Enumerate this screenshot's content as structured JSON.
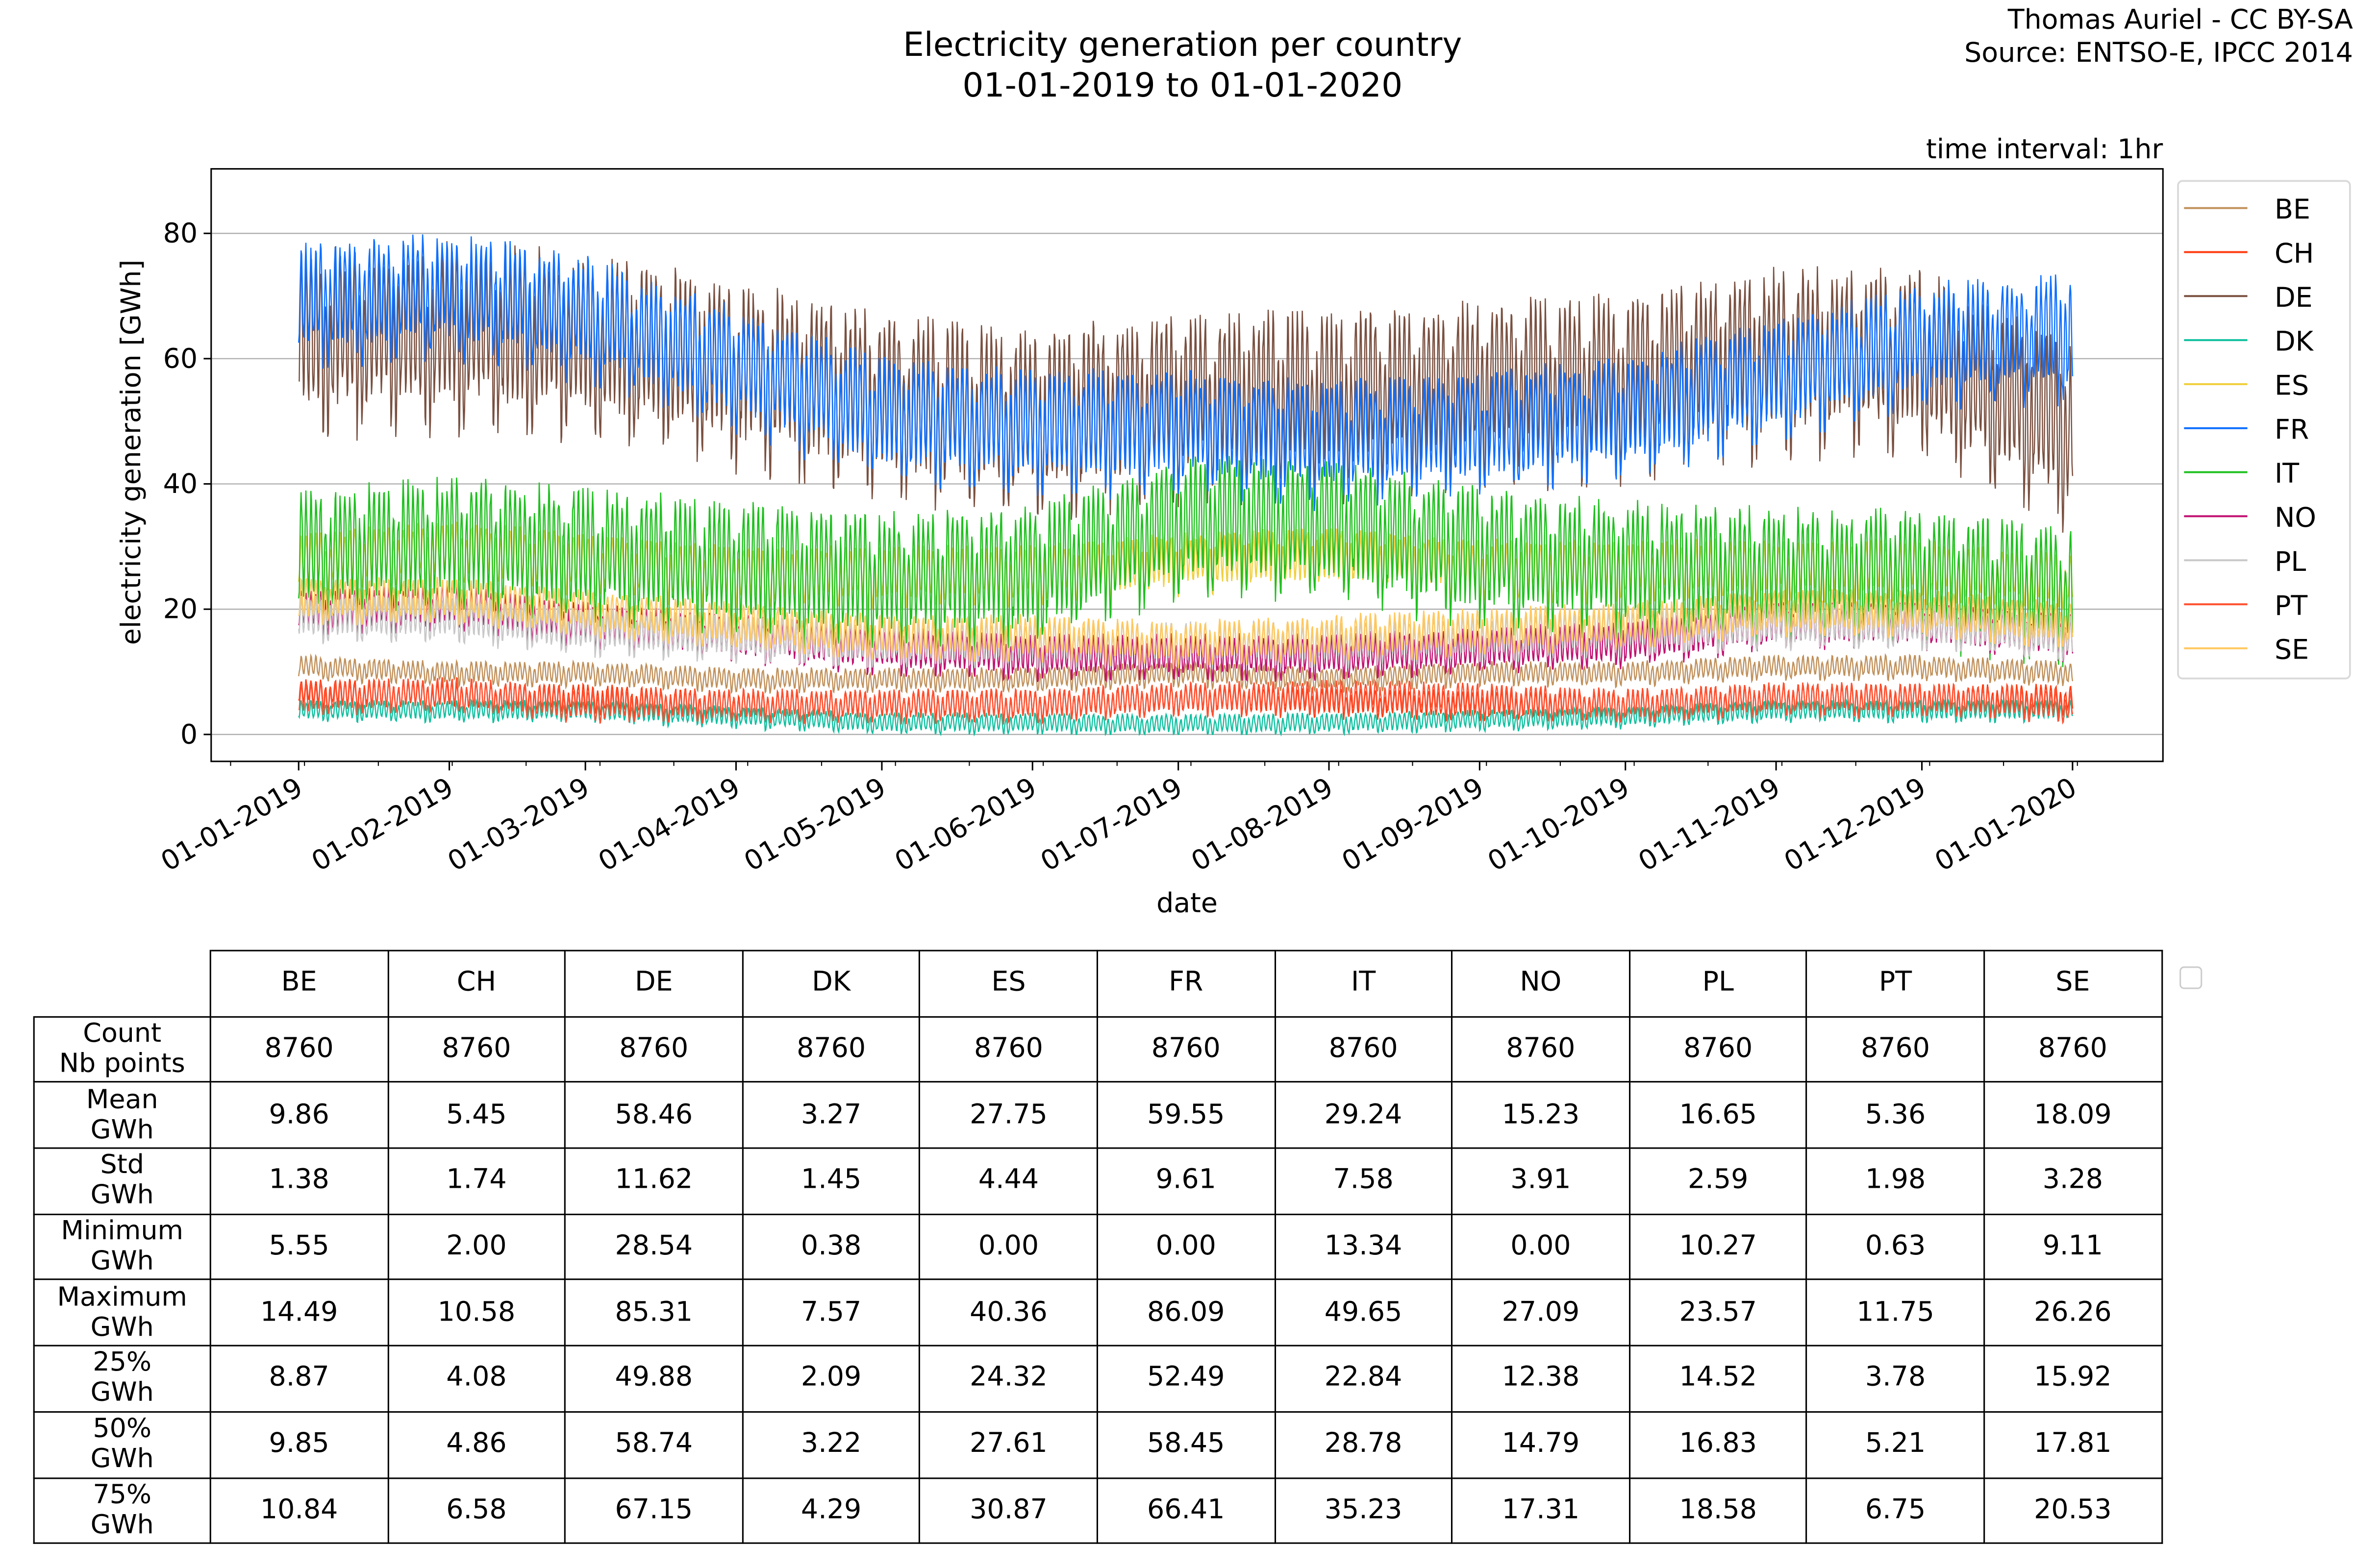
{
  "header": {
    "title_line1": "Electricity generation per country",
    "title_line2": "01-01-2019 to 01-01-2020",
    "credit_line1": "Thomas Auriel - CC BY-SA",
    "credit_line2": "Source: ENTSO-E, IPCC 2014",
    "interval": "time interval: 1hr"
  },
  "chart_data": {
    "type": "line",
    "title": "Electricity generation per country",
    "xlabel": "date",
    "ylabel": "electricity generation [GWh]",
    "x_ticks": [
      "01-01-2019",
      "01-02-2019",
      "01-03-2019",
      "01-04-2019",
      "01-05-2019",
      "01-06-2019",
      "01-07-2019",
      "01-08-2019",
      "01-09-2019",
      "01-10-2019",
      "01-11-2019",
      "01-12-2019",
      "01-01-2020"
    ],
    "x_tick_days": [
      0,
      31,
      59,
      90,
      120,
      151,
      181,
      212,
      243,
      273,
      304,
      334,
      365
    ],
    "xlim_days": [
      -18,
      383.6
    ],
    "y_ticks": [
      0,
      20,
      40,
      60,
      80
    ],
    "ylim": [
      -4.3,
      90.3
    ],
    "grid": "horizontal",
    "legend_position": "right-outside-top",
    "series": [
      {
        "name": "BE",
        "color": "#c0905a",
        "monthly_level": [
          11,
          10,
          10,
          9,
          9,
          9,
          10,
          9,
          10,
          10,
          11,
          11,
          10
        ],
        "swing": 1.6
      },
      {
        "name": "CH",
        "color": "#ff3a10",
        "monthly_level": [
          7,
          6.5,
          6,
          5,
          5,
          5,
          6,
          5.5,
          5,
          5,
          6,
          6,
          6
        ],
        "swing": 2
      },
      {
        "name": "DE",
        "color": "#7a5040",
        "monthly_level": [
          65,
          66,
          65,
          60,
          55,
          52,
          55,
          55,
          57,
          58,
          62,
          62,
          50
        ],
        "swing": 12
      },
      {
        "name": "DK",
        "color": "#10c0a0",
        "monthly_level": [
          4,
          4,
          4,
          3,
          2,
          2,
          1.8,
          2,
          2.5,
          3,
          4,
          4,
          4
        ],
        "swing": 1.4
      },
      {
        "name": "ES",
        "color": "#f0d040",
        "monthly_level": [
          28,
          30,
          28,
          26,
          26,
          26,
          28,
          29,
          27,
          27,
          27,
          27,
          25
        ],
        "swing": 4
      },
      {
        "name": "FR",
        "color": "#1070ff",
        "monthly_level": [
          70,
          72,
          68,
          60,
          52,
          50,
          50,
          48,
          50,
          52,
          58,
          64,
          65
        ],
        "swing": 8
      },
      {
        "name": "IT",
        "color": "#20c020",
        "monthly_level": [
          30,
          32,
          30,
          28,
          26,
          27,
          35,
          35,
          30,
          28,
          27,
          27,
          24
        ],
        "swing": 9
      },
      {
        "name": "NO",
        "color": "#c01070",
        "monthly_level": [
          20,
          21,
          18,
          16,
          14,
          13,
          13,
          13,
          14,
          15,
          18,
          18,
          16
        ],
        "swing": 3
      },
      {
        "name": "PL",
        "color": "#c8c8c8",
        "monthly_level": [
          19,
          19,
          17,
          16,
          15,
          15,
          15,
          15,
          16,
          17,
          18,
          18,
          16
        ],
        "swing": 3
      },
      {
        "name": "PT",
        "color": "#ff5030",
        "monthly_level": [
          6,
          7,
          5,
          5,
          5,
          5,
          6,
          6.5,
          6,
          5,
          6,
          6,
          5
        ],
        "swing": 2.2
      },
      {
        "name": "SE",
        "color": "#ffc860",
        "monthly_level": [
          22,
          22,
          20,
          18,
          16,
          16,
          15,
          16,
          17,
          18,
          20,
          20,
          18
        ],
        "swing": 3
      }
    ]
  },
  "table": {
    "columns": [
      "BE",
      "CH",
      "DE",
      "DK",
      "ES",
      "FR",
      "IT",
      "NO",
      "PL",
      "PT",
      "SE"
    ],
    "rows": [
      {
        "label1": "Count",
        "label2": "Nb points",
        "values": [
          "8760",
          "8760",
          "8760",
          "8760",
          "8760",
          "8760",
          "8760",
          "8760",
          "8760",
          "8760",
          "8760"
        ]
      },
      {
        "label1": "Mean",
        "label2": "GWh",
        "values": [
          "9.86",
          "5.45",
          "58.46",
          "3.27",
          "27.75",
          "59.55",
          "29.24",
          "15.23",
          "16.65",
          "5.36",
          "18.09"
        ]
      },
      {
        "label1": "Std",
        "label2": "GWh",
        "values": [
          "1.38",
          "1.74",
          "11.62",
          "1.45",
          "4.44",
          "9.61",
          "7.58",
          "3.91",
          "2.59",
          "1.98",
          "3.28"
        ]
      },
      {
        "label1": "Minimum",
        "label2": "GWh",
        "values": [
          "5.55",
          "2.00",
          "28.54",
          "0.38",
          "0.00",
          "0.00",
          "13.34",
          "0.00",
          "10.27",
          "0.63",
          "9.11"
        ]
      },
      {
        "label1": "Maximum",
        "label2": "GWh",
        "values": [
          "14.49",
          "10.58",
          "85.31",
          "7.57",
          "40.36",
          "86.09",
          "49.65",
          "27.09",
          "23.57",
          "11.75",
          "26.26"
        ]
      },
      {
        "label1": "25%",
        "label2": "GWh",
        "values": [
          "8.87",
          "4.08",
          "49.88",
          "2.09",
          "24.32",
          "52.49",
          "22.84",
          "12.38",
          "14.52",
          "3.78",
          "15.92"
        ]
      },
      {
        "label1": "50%",
        "label2": "GWh",
        "values": [
          "9.85",
          "4.86",
          "58.74",
          "3.22",
          "27.61",
          "58.45",
          "28.78",
          "14.79",
          "16.83",
          "5.21",
          "17.81"
        ]
      },
      {
        "label1": "75%",
        "label2": "GWh",
        "values": [
          "10.84",
          "6.58",
          "67.15",
          "4.29",
          "30.87",
          "66.41",
          "35.23",
          "17.31",
          "18.58",
          "6.75",
          "20.53"
        ]
      }
    ]
  }
}
